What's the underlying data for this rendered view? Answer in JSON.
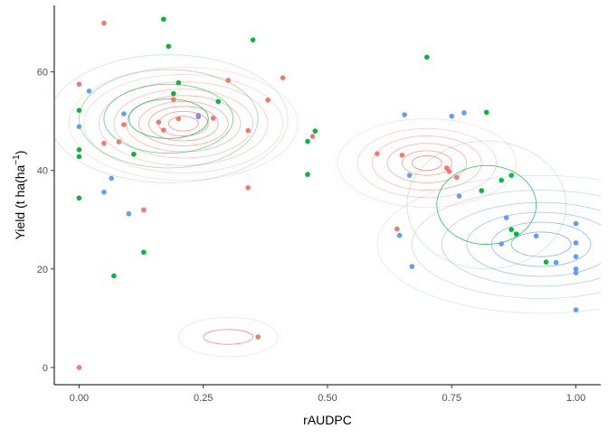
{
  "chart_data": {
    "type": "scatter",
    "title": "",
    "xlabel": "rAUDPC",
    "ylabel_parts": {
      "main": "Yield (t ha(ha",
      "sup": "−1",
      "close": ")"
    },
    "xlim": [
      -0.05,
      1.05
    ],
    "ylim": [
      -3.5,
      73.5
    ],
    "x_ticks": [
      {
        "value": 0.0,
        "label": "0.00"
      },
      {
        "value": 0.25,
        "label": "0.25"
      },
      {
        "value": 0.5,
        "label": "0.50"
      },
      {
        "value": 0.75,
        "label": "0.75"
      },
      {
        "value": 1.0,
        "label": "1.00"
      }
    ],
    "y_ticks": [
      {
        "value": 0,
        "label": "0"
      },
      {
        "value": 20,
        "label": "20"
      },
      {
        "value": 40,
        "label": "40"
      },
      {
        "value": 60,
        "label": "60"
      }
    ],
    "grid": false,
    "legend": "none",
    "overlay": "2D density contours per group",
    "series": [
      {
        "color": "#F8766D",
        "points": [
          [
            0.0,
            57.5
          ],
          [
            0.0,
            0.0
          ],
          [
            0.05,
            69.9
          ],
          [
            0.05,
            45.5
          ],
          [
            0.08,
            45.8
          ],
          [
            0.09,
            49.3
          ],
          [
            0.13,
            32.0
          ],
          [
            0.16,
            49.8
          ],
          [
            0.17,
            48.2
          ],
          [
            0.19,
            54.4
          ],
          [
            0.2,
            50.5
          ],
          [
            0.24,
            51.2
          ],
          [
            0.27,
            50.6
          ],
          [
            0.3,
            58.3
          ],
          [
            0.34,
            48.1
          ],
          [
            0.34,
            36.5
          ],
          [
            0.36,
            6.2
          ],
          [
            0.38,
            54.3
          ],
          [
            0.41,
            58.8
          ],
          [
            0.47,
            46.9
          ],
          [
            0.6,
            43.4
          ],
          [
            0.64,
            28.1
          ],
          [
            0.65,
            43.1
          ],
          [
            0.74,
            40.5
          ],
          [
            0.745,
            39.8
          ],
          [
            0.76,
            38.6
          ]
        ],
        "contours": [
          {
            "cx": 0.21,
            "cy": 49.5,
            "rx": [
              0.03,
              0.05,
              0.07,
              0.09,
              0.115,
              0.14,
              0.17,
              0.2,
              0.23
            ],
            "ry": [
              1.5,
              2.5,
              3.5,
              4.5,
              5.7,
              7.0,
              8.5,
              10.0,
              11.5
            ]
          },
          {
            "cx": 0.7,
            "cy": 41.5,
            "rx": [
              0.03,
              0.05,
              0.08,
              0.11,
              0.14,
              0.18
            ],
            "ry": [
              1.5,
              2.5,
              4.0,
              5.5,
              7.0,
              9.0
            ]
          },
          {
            "cx": 0.3,
            "cy": 6.2,
            "rx": [
              0.05,
              0.1
            ],
            "ry": [
              1.5,
              4.0
            ]
          }
        ]
      },
      {
        "color": "#00BA38",
        "points": [
          [
            0.0,
            52.2
          ],
          [
            0.0,
            44.2
          ],
          [
            0.0,
            42.8
          ],
          [
            0.0,
            34.4
          ],
          [
            0.07,
            18.6
          ],
          [
            0.11,
            43.3
          ],
          [
            0.13,
            23.4
          ],
          [
            0.17,
            70.7
          ],
          [
            0.18,
            65.2
          ],
          [
            0.19,
            55.6
          ],
          [
            0.2,
            57.8
          ],
          [
            0.28,
            54.0
          ],
          [
            0.35,
            66.5
          ],
          [
            0.46,
            45.9
          ],
          [
            0.46,
            39.2
          ],
          [
            0.475,
            48.0
          ],
          [
            0.7,
            63.0
          ],
          [
            0.81,
            35.9
          ],
          [
            0.82,
            51.8
          ],
          [
            0.85,
            38.0
          ],
          [
            0.87,
            39.0
          ],
          [
            0.87,
            28.0
          ],
          [
            0.88,
            27.1
          ],
          [
            0.94,
            21.4
          ]
        ],
        "contours": [
          {
            "cx": 0.18,
            "cy": 50.5,
            "rx": [
              0.08,
              0.13,
              0.18,
              0.24
            ],
            "ry": [
              4.0,
              7.0,
              10.0,
              13.0
            ]
          },
          {
            "cx": 0.82,
            "cy": 33.0,
            "rx": [
              0.1,
              0.16
            ],
            "ry": [
              8.0,
              13.0
            ]
          }
        ]
      },
      {
        "color": "#619CFF",
        "points": [
          [
            0.0,
            48.9
          ],
          [
            0.02,
            56.1
          ],
          [
            0.05,
            35.6
          ],
          [
            0.065,
            38.4
          ],
          [
            0.09,
            51.5
          ],
          [
            0.1,
            31.2
          ],
          [
            0.24,
            50.9
          ],
          [
            0.645,
            26.8
          ],
          [
            0.655,
            51.3
          ],
          [
            0.665,
            39.0
          ],
          [
            0.67,
            20.5
          ],
          [
            0.75,
            51.0
          ],
          [
            0.765,
            34.8
          ],
          [
            0.775,
            51.7
          ],
          [
            0.85,
            25.1
          ],
          [
            0.86,
            30.4
          ],
          [
            0.92,
            26.7
          ],
          [
            0.96,
            21.3
          ],
          [
            1.0,
            29.2
          ],
          [
            1.0,
            25.3
          ],
          [
            1.0,
            22.5
          ],
          [
            1.0,
            20.0
          ],
          [
            1.0,
            19.2
          ],
          [
            1.0,
            11.7
          ]
        ],
        "contours": [
          {
            "cx": 0.93,
            "cy": 25.0,
            "rx": [
              0.06,
              0.1,
              0.15,
              0.2,
              0.26,
              0.33
            ],
            "ry": [
              2.5,
              4.5,
              6.5,
              8.5,
              11.0,
              14.0
            ]
          }
        ]
      }
    ]
  }
}
